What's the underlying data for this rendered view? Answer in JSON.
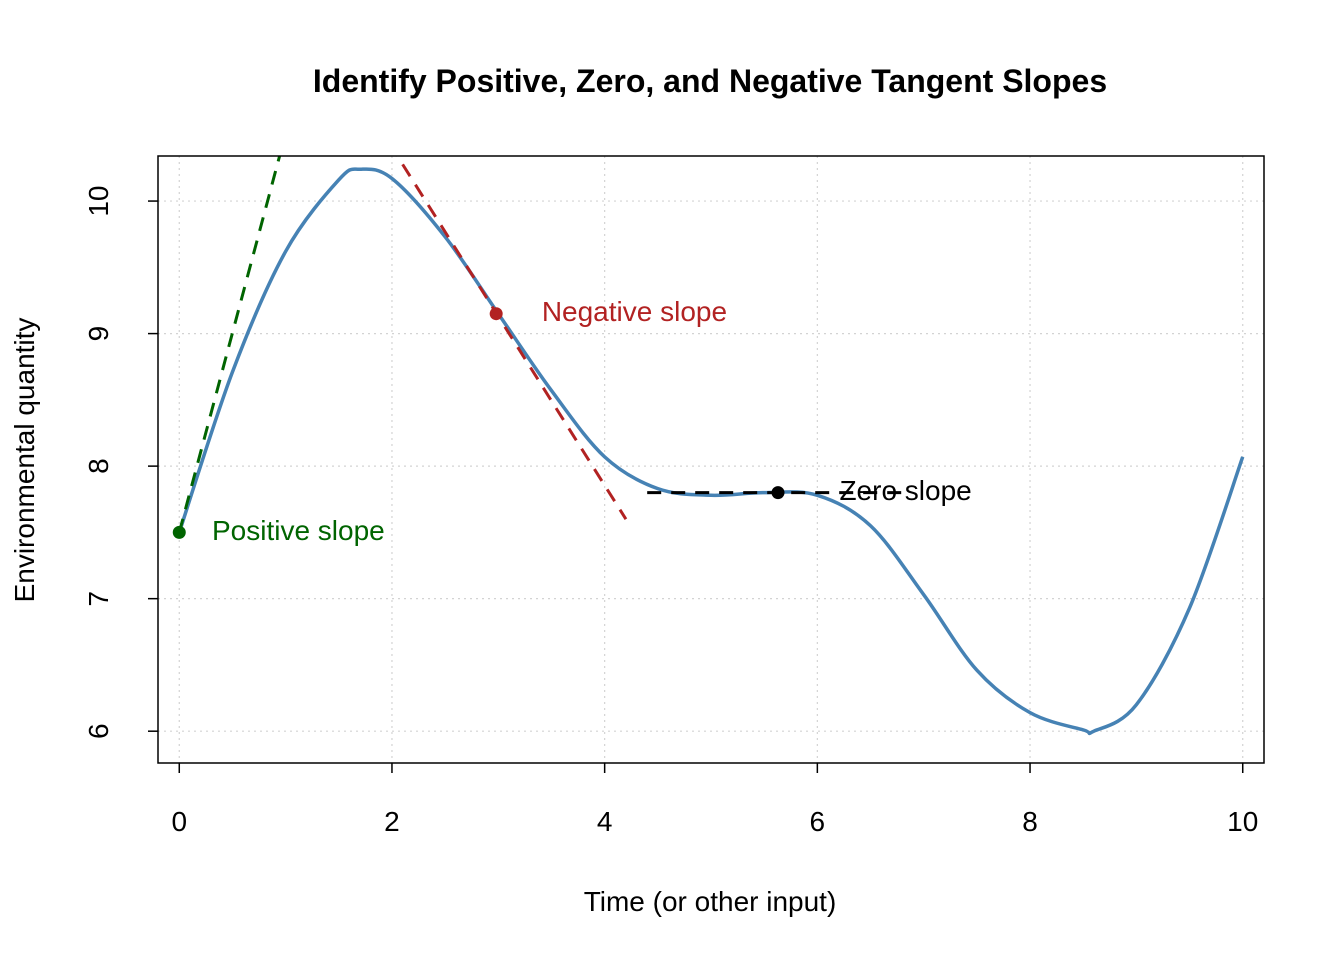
{
  "chart_data": {
    "type": "line",
    "title": "Identify Positive, Zero, and Negative Tangent Slopes",
    "xlabel": "Time (or other input)",
    "ylabel": "Environmental quantity",
    "xlim": [
      -0.2,
      10.2
    ],
    "ylim": [
      5.76,
      10.34
    ],
    "x_ticks": [
      0,
      2,
      4,
      6,
      8,
      10
    ],
    "y_ticks": [
      6,
      7,
      8,
      9,
      10
    ],
    "grid": true,
    "curve": {
      "color": "#4682B4",
      "x": [
        0,
        0.5,
        1,
        1.5,
        1.7,
        2,
        2.5,
        3,
        3.5,
        4,
        4.5,
        5,
        5.5,
        6,
        6.5,
        7,
        7.5,
        8,
        8.5,
        8.6,
        9,
        9.5,
        10
      ],
      "y": [
        7.5,
        8.71,
        9.62,
        10.16,
        10.24,
        10.17,
        9.73,
        9.15,
        8.57,
        8.07,
        7.83,
        7.78,
        7.8,
        7.78,
        7.55,
        7.03,
        6.46,
        6.14,
        6.01,
        6.0,
        6.2,
        6.93,
        8.07
      ]
    },
    "tangents": [
      {
        "label": "Positive slope",
        "color": "#006400",
        "point": [
          0,
          7.5
        ],
        "line_x": [
          0,
          0.97
        ],
        "line_y": [
          7.5,
          10.42
        ],
        "label_pos": [
          1.12,
          7.5
        ]
      },
      {
        "label": "Negative slope",
        "color": "#B22222",
        "point": [
          2.98,
          9.15
        ],
        "line_x": [
          1.98,
          4.2
        ],
        "line_y": [
          10.43,
          7.6
        ],
        "label_pos": [
          4.28,
          9.15
        ]
      },
      {
        "label": "Zero slope",
        "color": "#000000",
        "point": [
          5.63,
          7.8
        ],
        "line_x": [
          4.4,
          6.85
        ],
        "line_y": [
          7.8,
          7.8
        ],
        "label_pos": [
          6.83,
          7.8
        ]
      }
    ]
  }
}
